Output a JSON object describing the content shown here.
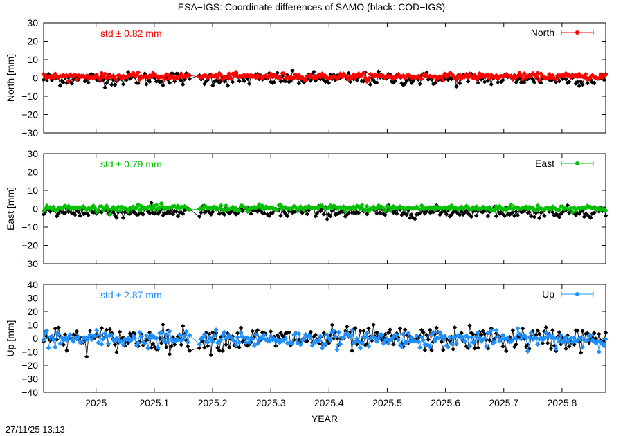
{
  "title": "ESA−IGS: Coordinate differences of SAMO (black: COD−IGS)",
  "footer_timestamp": "27/11/25 13:13",
  "chart_data": [
    {
      "type": "line",
      "ylabel": "North [mm]",
      "ylim": [
        -30,
        30
      ],
      "yticks": [
        30,
        20,
        10,
        0,
        -10,
        -20,
        -30
      ],
      "ytick_labels": [
        "30",
        "20",
        "10",
        "0",
        "−10",
        "−20",
        "−30"
      ],
      "xlim": [
        2024.91,
        2025.875
      ],
      "std_label": "std ± 0.82 mm",
      "legend": "North",
      "legend_position": "top-right",
      "color": "#ff0000",
      "series": [
        {
          "name": "North",
          "color": "#ff0000",
          "center": 0.8,
          "spread": 0.8
        },
        {
          "name": "COD−IGS",
          "color": "#000000",
          "center": -0.5,
          "spread": 1.8
        }
      ]
    },
    {
      "type": "line",
      "ylabel": "East [mm]",
      "ylim": [
        -30,
        30
      ],
      "yticks": [
        30,
        20,
        10,
        0,
        -10,
        -20,
        -30
      ],
      "ytick_labels": [
        "30",
        "20",
        "10",
        "0",
        "−10",
        "−20",
        "−30"
      ],
      "xlim": [
        2024.91,
        2025.875
      ],
      "std_label": "std ± 0.79 mm",
      "legend": "East",
      "legend_position": "top-right",
      "color": "#00c000",
      "series": [
        {
          "name": "East",
          "color": "#00c000",
          "center": 0.3,
          "spread": 0.8
        },
        {
          "name": "COD−IGS",
          "color": "#000000",
          "center": -1.8,
          "spread": 1.5
        }
      ]
    },
    {
      "type": "line",
      "ylabel": "Up [mm]",
      "ylim": [
        -40,
        40
      ],
      "yticks": [
        40,
        30,
        20,
        10,
        0,
        -10,
        -20,
        -30,
        -40
      ],
      "ytick_labels": [
        "40",
        "30",
        "20",
        "10",
        "0",
        "−10",
        "−20",
        "−30",
        "−40"
      ],
      "xlim": [
        2024.91,
        2025.875
      ],
      "std_label": "std ± 2.87 mm",
      "legend": "Up",
      "legend_position": "top-right",
      "color": "#1e90ff",
      "series": [
        {
          "name": "Up",
          "color": "#1e90ff",
          "center": -0.5,
          "spread": 3.0
        },
        {
          "name": "COD−IGS",
          "color": "#000000",
          "center": -0.5,
          "spread": 4.5
        }
      ]
    }
  ],
  "x_axis": {
    "label": "YEAR",
    "ticks": [
      2025,
      2025.1,
      2025.2,
      2025.3,
      2025.4,
      2025.5,
      2025.6,
      2025.7,
      2025.8
    ],
    "tick_labels": [
      "2025",
      "2025.1",
      "2025.2",
      "2025.3",
      "2025.4",
      "2025.5",
      "2025.6",
      "2025.7",
      "2025.8"
    ]
  }
}
